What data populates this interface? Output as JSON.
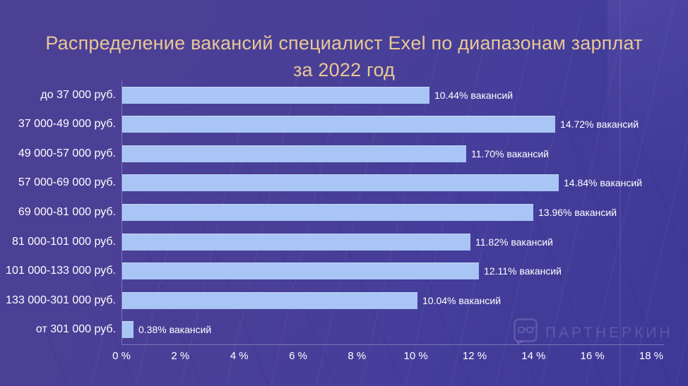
{
  "title": {
    "line1": "Распределение вакансий специалист Exel по диапазонам зарплат",
    "line2": "за 2022 год"
  },
  "watermark": {
    "text": "ПАРТНЕРКИН",
    "icon": "glasses-speech-bubble-icon"
  },
  "colors": {
    "background": "#4a3f97",
    "bar": "#a8c5f5",
    "title_text": "#e9c795",
    "label_text": "#ffffff",
    "axis_line": "rgba(210,210,240,0.38)"
  },
  "chart_data": {
    "type": "bar",
    "orientation": "horizontal",
    "title": "Распределение вакансий специалист Exel по диапазонам зарплат за 2022 год",
    "xlabel": "",
    "ylabel": "",
    "categories": [
      "до 37 000 руб.",
      "37 000-49 000 руб.",
      "49 000-57 000 руб.",
      "57 000-69 000 руб.",
      "69 000-81 000 руб.",
      "81 000-101 000 руб.",
      "101 000-133 000 руб.",
      "133 000-301 000 руб.",
      "от 301 000 руб."
    ],
    "values": [
      10.44,
      14.72,
      11.7,
      14.84,
      13.96,
      11.82,
      12.11,
      10.04,
      0.38
    ],
    "value_labels": [
      "10.44% вакансий",
      "14.72% вакансий",
      "11.70% вакансий",
      "14.84% вакансий",
      "13.96% вакансий",
      "11.82% вакансий",
      "12.11% вакансий",
      "10.04% вакансий",
      "0.38% вакансий"
    ],
    "x_ticks": [
      "0 %",
      "2 %",
      "4 %",
      "6 %",
      "8 %",
      "10 %",
      "12 %",
      "14 %",
      "16 %",
      "18 %"
    ],
    "xlim": [
      0,
      18
    ],
    "grid": false,
    "legend": false
  }
}
